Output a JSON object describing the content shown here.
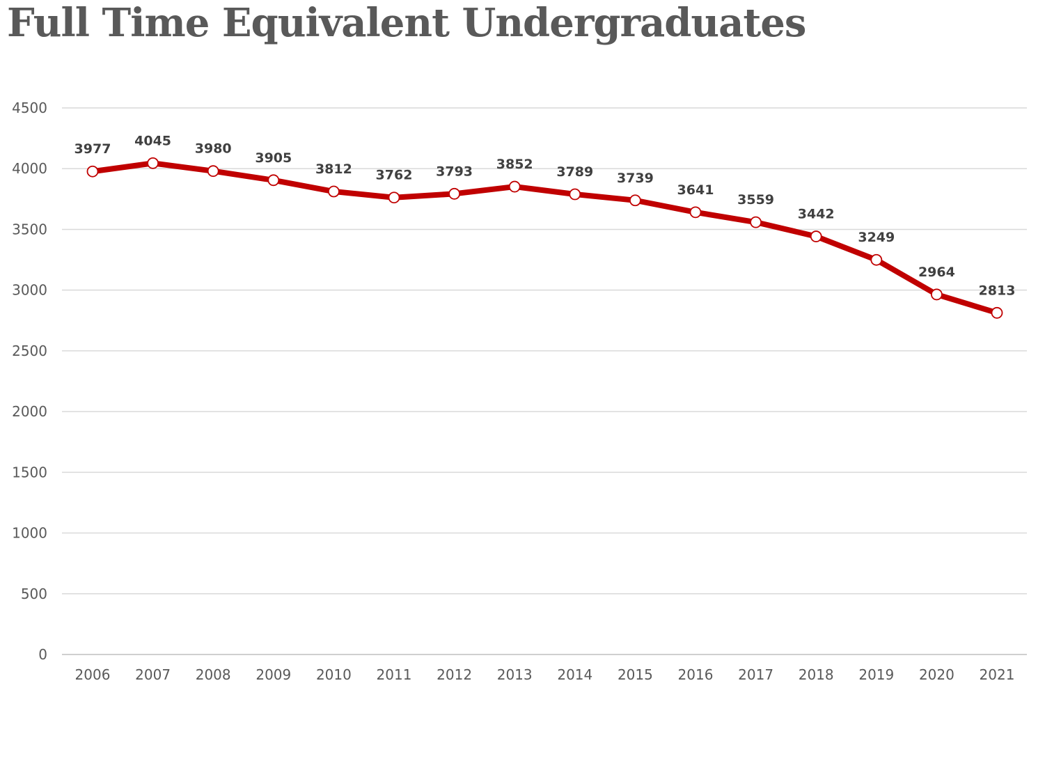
{
  "chart_data": {
    "type": "line",
    "title": "Full Time Equivalent Undergraduates",
    "categories": [
      "2006",
      "2007",
      "2008",
      "2009",
      "2010",
      "2011",
      "2012",
      "2013",
      "2014",
      "2015",
      "2016",
      "2017",
      "2018",
      "2019",
      "2020",
      "2021"
    ],
    "series": [
      {
        "values": [
          3977,
          4045,
          3980,
          3905,
          3812,
          3762,
          3793,
          3852,
          3789,
          3739,
          3641,
          3559,
          3442,
          3249,
          2964,
          2813
        ]
      }
    ],
    "ylim": [
      0,
      4500
    ],
    "yticks": [
      0,
      500,
      1000,
      1500,
      2000,
      2500,
      3000,
      3500,
      4000,
      4500
    ],
    "grid": true,
    "colors": {
      "line": "#c00000",
      "marker_fill": "#ffffff",
      "grid": "#d9d9d9",
      "text": "#595959"
    }
  }
}
